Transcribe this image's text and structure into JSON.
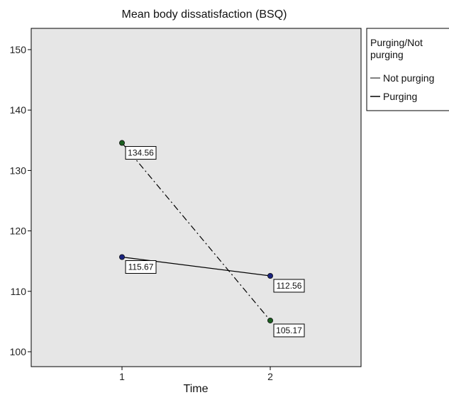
{
  "chart_data": {
    "type": "line",
    "title": "Mean body dissatisfaction (BSQ)",
    "xlabel": "Time",
    "ylabel": "",
    "categories": [
      "1",
      "2"
    ],
    "ylim": [
      98,
      152
    ],
    "yticks": [
      100,
      110,
      120,
      130,
      140,
      150
    ],
    "grid": false,
    "legend": {
      "title": "Purging/Not purging",
      "placement": "right",
      "entries": [
        "Not purging",
        "Purging"
      ]
    },
    "series": [
      {
        "name": "Not purging",
        "values": [
          115.67,
          112.56
        ],
        "labels": [
          "115.67",
          "112.56"
        ],
        "style": "solid",
        "marker_color": "#1a237e"
      },
      {
        "name": "Purging",
        "values": [
          134.56,
          105.17
        ],
        "labels": [
          "134.56",
          "105.17"
        ],
        "style": "dash-dot",
        "marker_color": "#1b5e20"
      }
    ],
    "colors": {
      "plot_background": "#e6e6e6",
      "line": "#000000"
    }
  }
}
